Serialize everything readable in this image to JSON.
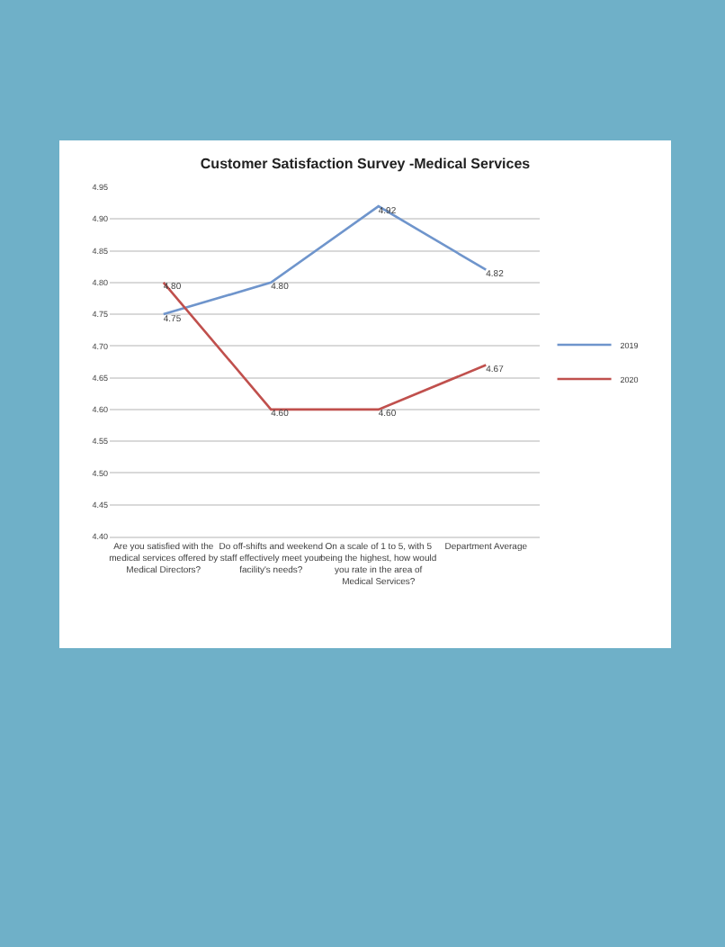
{
  "chart_data": {
    "type": "line",
    "title": "Customer Satisfaction Survey -Medical Services",
    "categories": [
      "Are you satisfied with the medical services offered by Medical Directors?",
      "Do off-shifts and weekend staff effectively meet your facility's needs?",
      "On a scale of 1 to 5, with 5 being the highest, how would you rate in the area of Medical Services?",
      "Department Average"
    ],
    "series": [
      {
        "name": "2019",
        "color": "#6f95cc",
        "values": [
          4.75,
          4.8,
          4.92,
          4.82
        ],
        "value_labels": [
          "4.75",
          "4.80",
          "4.92",
          "4.82"
        ]
      },
      {
        "name": "2020",
        "color": "#c0504d",
        "values": [
          4.8,
          4.6,
          4.6,
          4.67
        ],
        "value_labels": [
          "4.80",
          "4.60",
          "4.60",
          "4.67"
        ]
      }
    ],
    "ylim": [
      4.4,
      4.95
    ],
    "yticks": [
      {
        "value": 4.4,
        "label": "4.40"
      },
      {
        "value": 4.45,
        "label": "4.45"
      },
      {
        "value": 4.5,
        "label": "4.50"
      },
      {
        "value": 4.55,
        "label": "4.55"
      },
      {
        "value": 4.6,
        "label": "4.60"
      },
      {
        "value": 4.65,
        "label": "4.65"
      },
      {
        "value": 4.7,
        "label": "4.70"
      },
      {
        "value": 4.75,
        "label": "4.75"
      },
      {
        "value": 4.8,
        "label": "4.80"
      },
      {
        "value": 4.85,
        "label": "4.85"
      },
      {
        "value": 4.9,
        "label": "4.90"
      },
      {
        "value": 4.95,
        "label": "4.95"
      }
    ],
    "grid": "y",
    "legend": "right",
    "marker": "none",
    "line_style": "solid"
  }
}
